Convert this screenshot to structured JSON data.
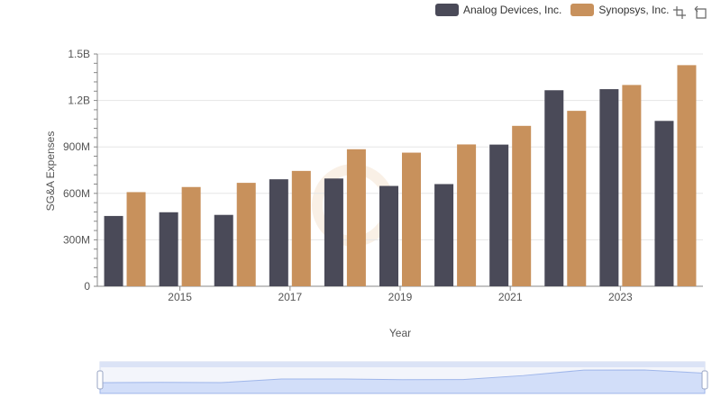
{
  "legend": {
    "items": [
      {
        "label": "Analog Devices, Inc.",
        "color": "#4a4a58"
      },
      {
        "label": "Synopsys, Inc.",
        "color": "#c8915c"
      }
    ]
  },
  "toolbox": {
    "icons": [
      "zoom-icon",
      "restore-icon"
    ]
  },
  "chart_data": {
    "type": "bar",
    "xlabel": "Year",
    "ylabel": "SG&A Expenses",
    "categories": [
      "2014",
      "2015",
      "2016",
      "2017",
      "2018",
      "2019",
      "2020",
      "2021",
      "2022",
      "2023",
      "2024"
    ],
    "x_tick_labels": [
      "2015",
      "2017",
      "2019",
      "2021",
      "2023"
    ],
    "y_tick_labels": [
      "0",
      "300M",
      "600M",
      "900M",
      "1.2B",
      "1.5B"
    ],
    "ylim": [
      0,
      1500000000
    ],
    "grid": true,
    "legend_position": "top-right",
    "series": [
      {
        "name": "Analog Devices, Inc.",
        "color": "#4a4a58",
        "values": [
          454000000,
          478000000,
          461000000,
          691000000,
          696000000,
          648000000,
          660000000,
          915000000,
          1266000000,
          1273000000,
          1068000000
        ]
      },
      {
        "name": "Synopsys, Inc.",
        "color": "#c8915c",
        "values": [
          608000000,
          641000000,
          668000000,
          745000000,
          885000000,
          863000000,
          916000000,
          1036000000,
          1133000000,
          1300000000,
          1428000000
        ]
      }
    ]
  }
}
